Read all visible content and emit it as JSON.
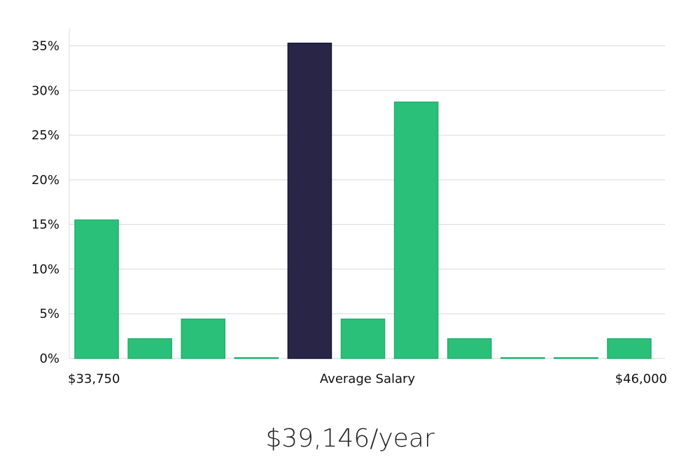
{
  "chart_data": {
    "type": "bar",
    "title": "",
    "xlabel": "Average Salary",
    "ylabel": "",
    "x_range_labels": {
      "min": "$33,750",
      "max": "$46,000"
    },
    "bins": 11,
    "values": [
      15.5,
      2.2,
      4.4,
      0.05,
      35.3,
      4.4,
      28.7,
      2.2,
      0.05,
      0.05,
      2.2
    ],
    "highlight_index": 4,
    "ylim": [
      0,
      37
    ],
    "y_ticks": [
      0,
      5,
      10,
      15,
      20,
      25,
      30,
      35
    ],
    "y_tick_labels": [
      "0%",
      "5%",
      "10%",
      "15%",
      "20%",
      "25%",
      "30%",
      "35%"
    ],
    "grid": true,
    "colors": {
      "bar": "#2ac079",
      "bar_stroke": "#20b06b",
      "highlight": "#282546",
      "highlight_stroke": "#1a1838"
    }
  },
  "summary": {
    "salary_text": "$39,146/year"
  }
}
